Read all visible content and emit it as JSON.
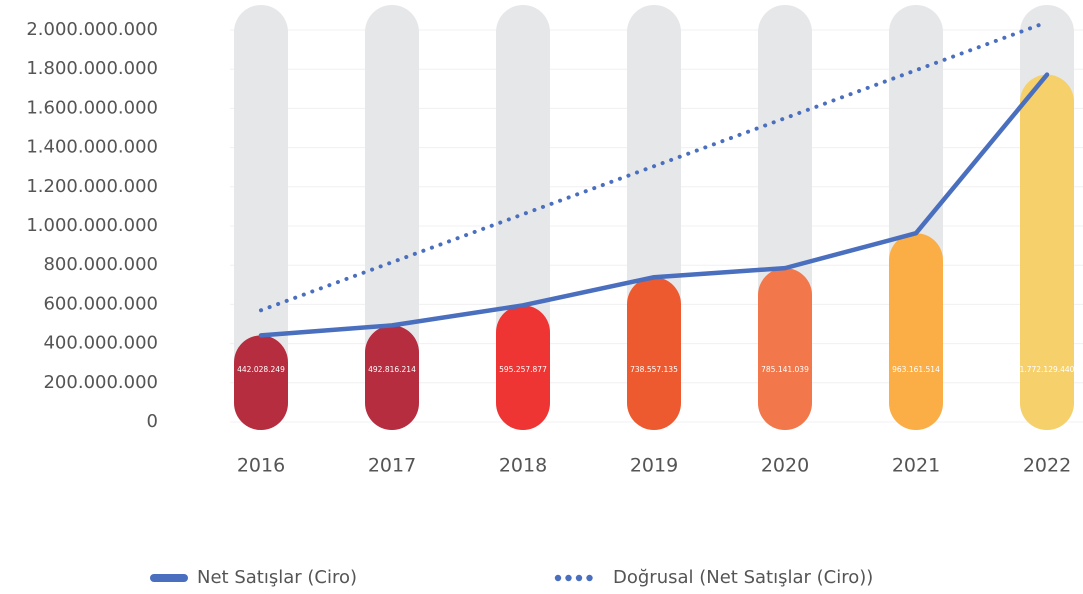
{
  "chart_data": {
    "type": "bar",
    "categories": [
      "2016",
      "2017",
      "2018",
      "2019",
      "2020",
      "2021",
      "2022"
    ],
    "bar_colors": [
      "#b52d3f",
      "#b52d3f",
      "#ee3533",
      "#ee5a30",
      "#f2774a",
      "#fbae45",
      "#f6d06a"
    ],
    "series": [
      {
        "name": "Net Satışlar (Ciro)",
        "color": "#4a6fbe",
        "line_style": "solid",
        "values": [
          442028249,
          492816214,
          595257877,
          738557135,
          785141039,
          963161514,
          1772129440
        ],
        "value_labels": [
          "442.028.249",
          "492.816.214",
          "595.257.877",
          "738.557.135",
          "785.141.039",
          "963.161.514",
          "1.772.129.440"
        ]
      },
      {
        "name": "Doğrusal (Net Satışlar (Ciro))",
        "color": "#4a6fbe",
        "line_style": "dotted",
        "values": [
          570000000,
          815000000,
          1060000000,
          1305000000,
          1550000000,
          1795000000,
          2040000000
        ]
      }
    ],
    "ylim": [
      0,
      2000000000
    ],
    "yticks": [
      0,
      {
        "value": 200000000,
        "label": "200.000.000"
      },
      {
        "value": 400000000,
        "label": "400.000.000"
      },
      {
        "value": 600000000,
        "label": "600.000.000"
      },
      {
        "value": 800000000,
        "label": "800.000.000"
      },
      {
        "value": 1000000000,
        "label": "1.000.000.000"
      },
      {
        "value": 1200000000,
        "label": "1.200.000.000"
      },
      {
        "value": 1400000000,
        "label": "1.400.000.000"
      },
      {
        "value": 1600000000,
        "label": "1.600.000.000"
      },
      {
        "value": 1800000000,
        "label": "1.800.000.000"
      },
      {
        "value": 2000000000,
        "label": "2.000.000.000"
      }
    ],
    "grid": true
  }
}
